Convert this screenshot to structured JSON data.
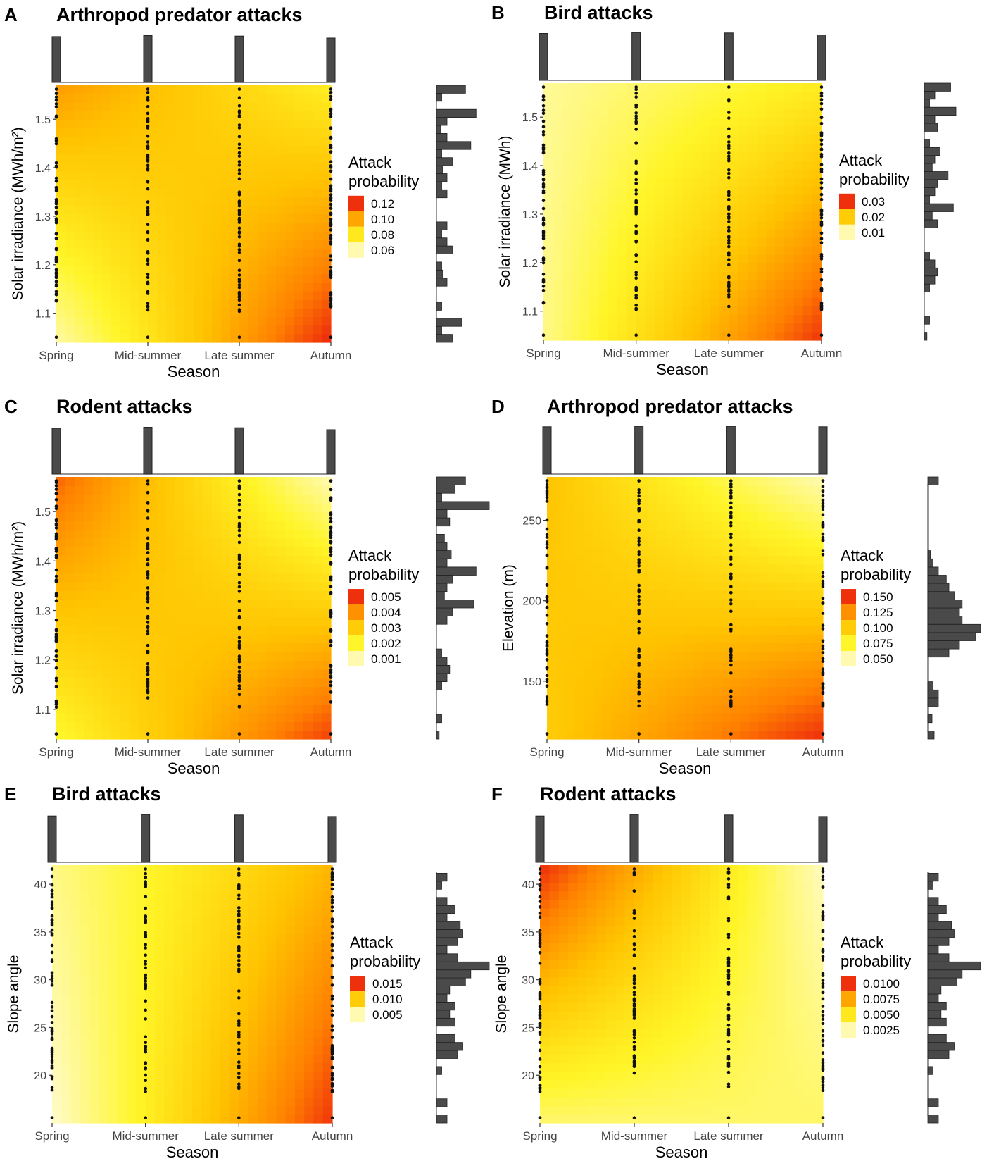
{
  "figure": {
    "description_caption": ""
  },
  "chart_data": [
    {
      "panel_letter": "A",
      "title": "Arthropod predator attacks",
      "type": "heatmap",
      "xlabel": "Season",
      "ylabel": "Solar irradiance (MWh/m²)",
      "x_categories": [
        "Spring",
        "Mid-summer",
        "Late summer",
        "Autumn"
      ],
      "ylim": [
        1.04,
        1.57
      ],
      "y_ticks": [
        1.1,
        1.2,
        1.3,
        1.4,
        1.5
      ],
      "z": {
        "corners": {
          "bottom_left": 0.055,
          "top_left": 0.105,
          "bottom_right": 0.128,
          "top_right": 0.075
        },
        "min": 0.05,
        "max": 0.13
      },
      "legend": {
        "title_line1": "Attack",
        "title_line2": "probability",
        "labels": [
          "0.12",
          "0.10",
          "0.08",
          "0.06"
        ]
      },
      "season_histogram": [
        0.93,
        0.95,
        0.94,
        0.9
      ],
      "y_histogram": [
        0.3,
        0.1,
        0.48,
        0,
        0.1,
        0,
        0,
        0.2,
        0.12,
        0.1,
        0,
        0.3,
        0.2,
        0.1,
        0.2,
        0,
        0,
        0,
        0.2,
        0.1,
        0.2,
        0.12,
        0.3,
        0.1,
        0.65,
        0.2,
        0.08,
        0.2,
        0.75,
        0,
        0.1,
        0.55
      ]
    },
    {
      "panel_letter": "B",
      "title": "Bird attacks",
      "type": "heatmap",
      "xlabel": "Season",
      "ylabel": "Solar irradiance (MWh)",
      "x_categories": [
        "Spring",
        "Mid-summer",
        "Late summer",
        "Autumn"
      ],
      "ylim": [
        1.04,
        1.57
      ],
      "y_ticks": [
        1.1,
        1.2,
        1.3,
        1.4,
        1.5
      ],
      "z": {
        "corners": {
          "bottom_left": 0.004,
          "top_left": 0.003,
          "bottom_right": 0.032,
          "top_right": 0.011
        },
        "min": 0.0,
        "max": 0.034
      },
      "legend": {
        "title_line1": "Attack",
        "title_line2": "probability",
        "labels": [
          "0.03",
          "0.02",
          "0.01"
        ]
      },
      "season_histogram": [
        0.95,
        0.97,
        0.96,
        0.92
      ],
      "y_histogram": [
        0.05,
        0,
        0.1,
        0,
        0,
        0,
        0.1,
        0.2,
        0.25,
        0.2,
        0.1,
        0,
        0,
        0,
        0.25,
        0.15,
        0.55,
        0.1,
        0.2,
        0.25,
        0.45,
        0.15,
        0.2,
        0.3,
        0.1,
        0,
        0.25,
        0.2,
        0.6,
        0.1,
        0.2,
        0.5
      ]
    },
    {
      "panel_letter": "C",
      "title": "Rodent attacks",
      "type": "heatmap",
      "xlabel": "Season",
      "ylabel": "Solar irradiance (MWh/m²)",
      "x_categories": [
        "Spring",
        "Mid-summer",
        "Late summer",
        "Autumn"
      ],
      "ylim": [
        1.04,
        1.57
      ],
      "y_ticks": [
        1.1,
        1.2,
        1.3,
        1.4,
        1.5
      ],
      "z": {
        "corners": {
          "bottom_left": 0.0018,
          "top_left": 0.0048,
          "bottom_right": 0.0052,
          "top_right": 0.0007
        },
        "min": 0.0005,
        "max": 0.0056
      },
      "legend": {
        "title_line1": "Attack",
        "title_line2": "probability",
        "labels": [
          "0.005",
          "0.004",
          "0.003",
          "0.002",
          "0.001"
        ]
      },
      "season_histogram": [
        0.93,
        0.95,
        0.94,
        0.9
      ],
      "y_histogram": [
        0.05,
        0,
        0.1,
        0,
        0,
        0,
        0.1,
        0.2,
        0.25,
        0.2,
        0.1,
        0,
        0,
        0,
        0.2,
        0.3,
        0.7,
        0.15,
        0.2,
        0.3,
        0.75,
        0.2,
        0.28,
        0.2,
        0.15,
        0,
        0.25,
        0.2,
        1.0,
        0.1,
        0.35,
        0.55
      ]
    },
    {
      "panel_letter": "D",
      "title": "Arthropod predator attacks",
      "type": "heatmap",
      "xlabel": "Season",
      "ylabel": "Elevation (m)",
      "x_categories": [
        "Spring",
        "Mid-summer",
        "Late summer",
        "Autumn"
      ],
      "ylim": [
        114,
        277
      ],
      "y_ticks": [
        150,
        200,
        250
      ],
      "z": {
        "corners": {
          "bottom_left": 0.105,
          "top_left": 0.11,
          "bottom_right": 0.16,
          "top_right": 0.05
        },
        "min": 0.045,
        "max": 0.165
      },
      "legend": {
        "title_line1": "Attack",
        "title_line2": "probability",
        "labels": [
          "0.150",
          "0.125",
          "0.100",
          "0.075",
          "0.050"
        ]
      },
      "season_histogram": [
        0.96,
        0.97,
        0.97,
        0.96
      ],
      "y_histogram": [
        0.12,
        0,
        0.08,
        0,
        0.2,
        0.2,
        0.1,
        0,
        0,
        0,
        0.4,
        0.6,
        0.9,
        1.0,
        0.65,
        0.6,
        0.65,
        0.5,
        0.4,
        0.35,
        0.2,
        0.1,
        0.05,
        0,
        0,
        0,
        0,
        0,
        0,
        0,
        0,
        0.2
      ],
      "y_hist_range": [
        114,
        277
      ]
    },
    {
      "panel_letter": "E",
      "title": "Bird attacks",
      "type": "heatmap",
      "xlabel": "Season",
      "ylabel": "Slope angle",
      "x_categories": [
        "Spring",
        "Mid-summer",
        "Late summer",
        "Autumn"
      ],
      "ylim": [
        15,
        42
      ],
      "y_ticks": [
        20,
        25,
        30,
        35,
        40
      ],
      "z": {
        "corners": {
          "bottom_left": 0.0,
          "top_left": 0.002,
          "bottom_right": 0.016,
          "top_right": 0.01
        },
        "min": 0.0,
        "max": 0.017
      },
      "legend": {
        "title_line1": "Attack",
        "title_line2": "probability",
        "labels": [
          "0.015",
          "0.010",
          "0.005"
        ]
      },
      "season_histogram": [
        0.94,
        0.97,
        0.96,
        0.93
      ],
      "y_histogram": [
        0.2,
        0,
        0.2,
        0,
        0,
        0,
        0.1,
        0,
        0.4,
        0.5,
        0.35,
        0,
        0.35,
        0.25,
        0.35,
        0.2,
        0.25,
        0.55,
        0.65,
        1.0,
        0.4,
        0.2,
        0.4,
        0.5,
        0.45,
        0.2,
        0.35,
        0.2,
        0,
        0.1,
        0.2,
        0
      ],
      "y_hist_range": [
        15,
        42
      ]
    },
    {
      "panel_letter": "F",
      "title": "Rodent attacks",
      "type": "heatmap",
      "xlabel": "Season",
      "ylabel": "Slope angle",
      "x_categories": [
        "Spring",
        "Mid-summer",
        "Late summer",
        "Autumn"
      ],
      "ylim": [
        15,
        42
      ],
      "y_ticks": [
        20,
        25,
        30,
        35,
        40
      ],
      "z": {
        "corners": {
          "bottom_left": 0.002,
          "top_left": 0.012,
          "bottom_right": 0.0022,
          "top_right": 0.0003
        },
        "min": 0.0,
        "max": 0.0125
      },
      "legend": {
        "title_line1": "Attack",
        "title_line2": "probability",
        "labels": [
          "0.0100",
          "0.0075",
          "0.0050",
          "0.0025"
        ]
      },
      "season_histogram": [
        0.94,
        0.97,
        0.96,
        0.93
      ],
      "y_histogram": [
        0.2,
        0,
        0.2,
        0,
        0,
        0,
        0.1,
        0,
        0.4,
        0.5,
        0.35,
        0,
        0.35,
        0.25,
        0.35,
        0.2,
        0.25,
        0.55,
        0.65,
        1.0,
        0.4,
        0.2,
        0.4,
        0.5,
        0.45,
        0.2,
        0.35,
        0.2,
        0,
        0.1,
        0.2,
        0
      ],
      "y_hist_range": [
        15,
        42
      ]
    }
  ]
}
